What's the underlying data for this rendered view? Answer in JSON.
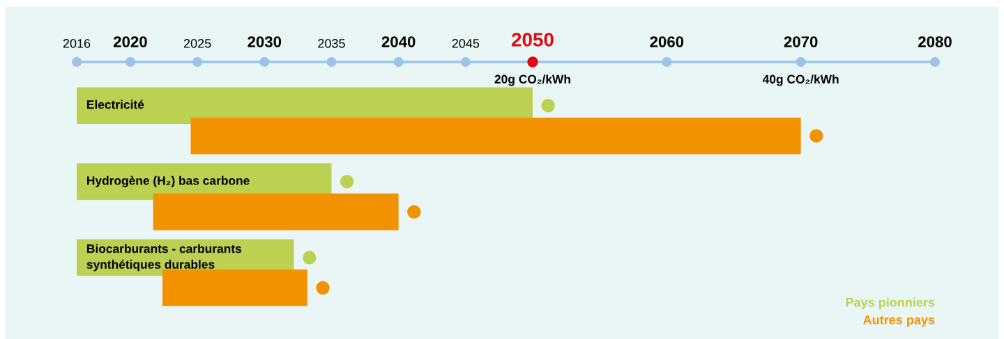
{
  "chart_data": {
    "type": "bar",
    "orientation": "horizontal",
    "categories": [
      "Electricité",
      "Hydrogène (H₂) bas carbone",
      "Biocarburants - carburants synthétiques durables"
    ],
    "series": [
      {
        "name": "Pays pionniers",
        "color": "#bcd151",
        "values": [
          34,
          19,
          16.2
        ],
        "base": [
          2016,
          2016,
          2016
        ]
      },
      {
        "name": "Autres pays",
        "color": "#f39200",
        "values": [
          45.5,
          18.3,
          10.8
        ],
        "base": [
          2024.5,
          2021.7,
          2022.4
        ]
      }
    ],
    "xlim": [
      2016,
      2080
    ],
    "xticks": [
      2016,
      2020,
      2025,
      2030,
      2035,
      2040,
      2045,
      2050,
      2060,
      2070,
      2080
    ],
    "annotations": [
      "20g CO₂/kWh",
      "40g CO₂/kWh"
    ],
    "marker": "circle",
    "grid": false
  }
}
